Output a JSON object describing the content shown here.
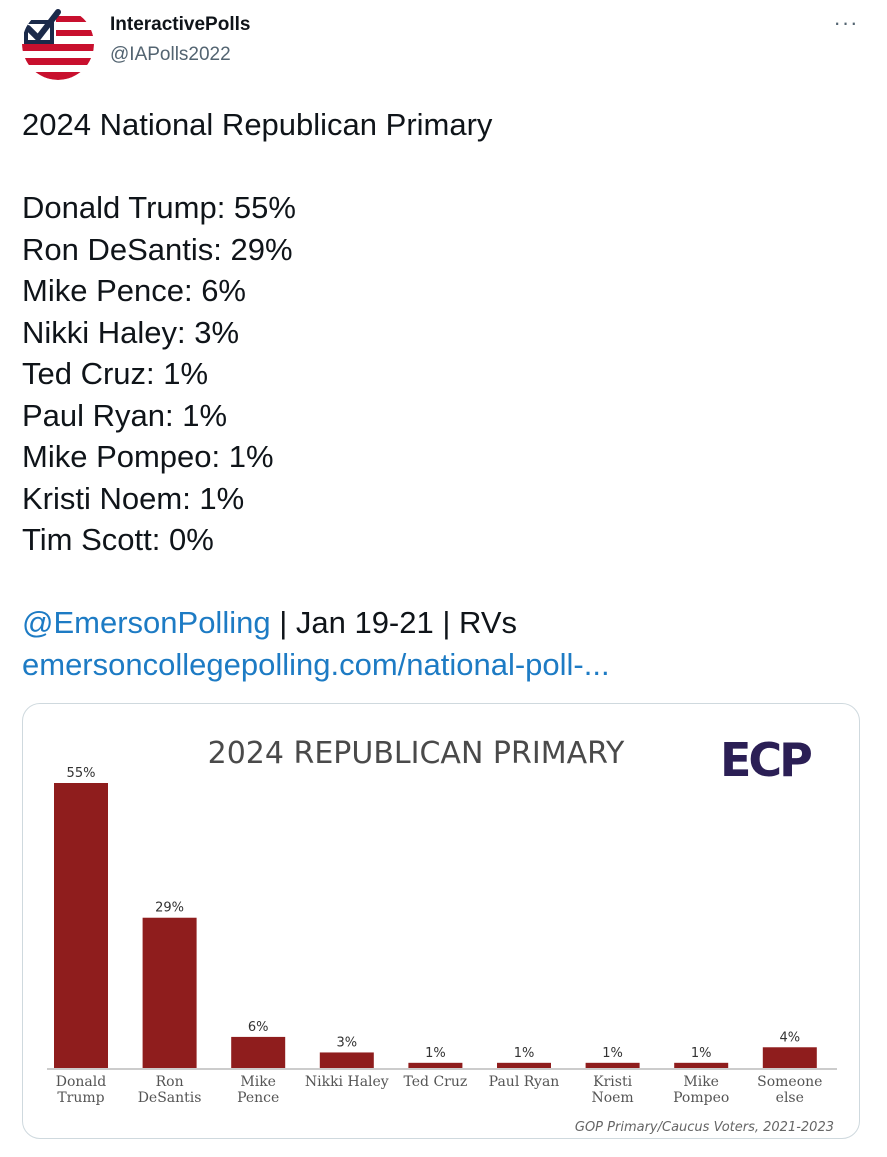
{
  "author": {
    "name": "InteractivePolls",
    "handle": "@IAPolls2022",
    "avatar_icon": "flag-checkmark-logo-icon"
  },
  "more_icon": "more-horizontal-icon",
  "more_label": "···",
  "tweet": {
    "title": "2024 National Republican Primary",
    "results": [
      "Donald Trump: 55%",
      "Ron DeSantis: 29%",
      "Mike Pence: 6%",
      "Nikki Haley: 3%",
      "Ted Cruz: 1%",
      "Paul Ryan: 1%",
      "Mike Pompeo: 1%",
      "Kristi Noem: 1%",
      "Tim Scott: 0%"
    ],
    "mention": "@EmersonPolling",
    "meta": " | Jan 19-21 | RVs",
    "url": "emersoncollegepolling.com/national-poll-..."
  },
  "chart_data": {
    "type": "bar",
    "title": "2024 REPUBLICAN PRIMARY",
    "logo_text": "ECP",
    "categories": [
      [
        "Donald",
        "Trump"
      ],
      [
        "Ron",
        "DeSantis"
      ],
      [
        "Mike",
        "Pence"
      ],
      [
        "Nikki Haley"
      ],
      [
        "Ted Cruz"
      ],
      [
        "Paul Ryan"
      ],
      [
        "Kristi",
        "Noem"
      ],
      [
        "Mike",
        "Pompeo"
      ],
      [
        "Someone",
        "else"
      ]
    ],
    "values": [
      55,
      29,
      6,
      3,
      1,
      1,
      1,
      1,
      4
    ],
    "value_labels": [
      "55%",
      "29%",
      "6%",
      "3%",
      "1%",
      "1%",
      "1%",
      "1%",
      "4%"
    ],
    "ylim": [
      0,
      55
    ],
    "bar_color": "#8f1d1d",
    "footnote": "GOP Primary/Caucus Voters, 2021-2023",
    "grid": false
  }
}
